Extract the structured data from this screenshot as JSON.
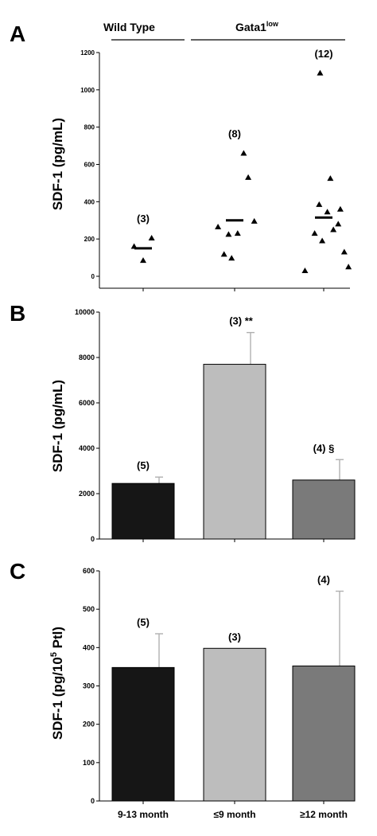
{
  "chart_data": [
    {
      "panel": "A",
      "type": "scatter",
      "groups": [
        {
          "label": "Wild Type",
          "columns": [
            0
          ]
        },
        {
          "label": "Gata1",
          "label_superscript": "low",
          "columns": [
            1,
            2
          ]
        }
      ],
      "ylabel": "SDF-1 (pg/mL)",
      "ylim": [
        0,
        1200
      ],
      "yticks": [
        0,
        200,
        400,
        600,
        800,
        1000,
        1200
      ],
      "columns": [
        {
          "n_label": "(3)",
          "mean": 150,
          "points": [
            {
              "x": -0.3,
              "y": 160
            },
            {
              "x": 0,
              "y": 85
            },
            {
              "x": 0.28,
              "y": 205
            }
          ]
        },
        {
          "n_label": "(8)",
          "mean": 300,
          "points": [
            {
              "x": -0.55,
              "y": 265
            },
            {
              "x": -0.35,
              "y": 118
            },
            {
              "x": -0.1,
              "y": 97
            },
            {
              "x": -0.2,
              "y": 225
            },
            {
              "x": 0.1,
              "y": 230
            },
            {
              "x": 0.3,
              "y": 660
            },
            {
              "x": 0.45,
              "y": 530
            },
            {
              "x": 0.65,
              "y": 295
            }
          ]
        },
        {
          "n_label": "(12)",
          "mean": 315,
          "points": [
            {
              "x": -0.62,
              "y": 30
            },
            {
              "x": -0.3,
              "y": 230
            },
            {
              "x": -0.15,
              "y": 385
            },
            {
              "x": -0.05,
              "y": 190
            },
            {
              "x": -0.12,
              "y": 1090
            },
            {
              "x": 0.12,
              "y": 345
            },
            {
              "x": 0.22,
              "y": 525
            },
            {
              "x": 0.32,
              "y": 250
            },
            {
              "x": 0.48,
              "y": 280
            },
            {
              "x": 0.55,
              "y": 360
            },
            {
              "x": 0.68,
              "y": 130
            },
            {
              "x": 0.82,
              "y": 50
            }
          ]
        }
      ]
    },
    {
      "panel": "B",
      "type": "bar",
      "ylabel": "SDF-1 (pg/mL)",
      "ylim": [
        0,
        10000
      ],
      "yticks": [
        0,
        2000,
        4000,
        6000,
        8000,
        10000
      ],
      "series": [
        {
          "values": [
            2450,
            7700,
            2600
          ],
          "errors": [
            280,
            1400,
            900
          ],
          "colors": [
            "#161616",
            "#bdbdbd",
            "#7a7a7a"
          ],
          "labels": [
            "(5)",
            "(3) **",
            "(4) §"
          ]
        }
      ]
    },
    {
      "panel": "C",
      "type": "bar",
      "ylabel": "SDF-1 (pg/10⁵ Ptl)",
      "ylim": [
        0,
        600
      ],
      "yticks": [
        0,
        100,
        200,
        300,
        400,
        500,
        600
      ],
      "categories": [
        "9-13 month",
        "≤9 month",
        "≥12 month"
      ],
      "series": [
        {
          "values": [
            348,
            398,
            352
          ],
          "errors": [
            88,
            0,
            195
          ],
          "colors": [
            "#161616",
            "#bdbdbd",
            "#7a7a7a"
          ],
          "labels": [
            "(5)",
            "(3)",
            "(4)"
          ]
        }
      ]
    }
  ]
}
